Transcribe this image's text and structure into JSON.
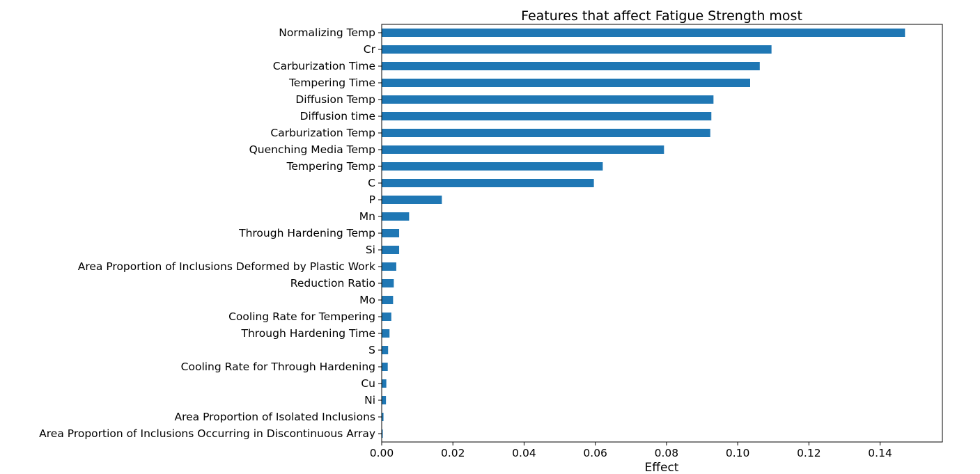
{
  "chart_data": {
    "type": "bar",
    "orientation": "horizontal",
    "title": "Features that affect Fatigue Strength most",
    "xlabel": "Effect",
    "ylabel": "",
    "xlim": [
      0,
      0.1575
    ],
    "xticks": [
      "0.00",
      "0.02",
      "0.04",
      "0.06",
      "0.08",
      "0.10",
      "0.12",
      "0.14"
    ],
    "grid": false,
    "legend": false,
    "bar_color": "#1f77b4",
    "categories": [
      "Normalizing Temp",
      "Cr",
      "Carburization Time",
      "Tempering Time",
      "Diffusion Temp",
      "Diffusion time",
      "Carburization Temp",
      "Quenching Media Temp",
      "Tempering Temp",
      "C",
      "P",
      "Mn",
      "Through Hardening Temp",
      "Si",
      "Area Proportion of Inclusions Deformed by Plastic Work",
      "Reduction Ratio",
      "Mo",
      "Cooling Rate for Tempering",
      "Through Hardening Time",
      "S",
      "Cooling Rate for Through Hardening",
      "Cu",
      "Ni",
      "Area Proportion of Isolated Inclusions",
      "Area Proportion of Inclusions Occurring in Discontinuous Array"
    ],
    "values": [
      0.147,
      0.1095,
      0.1062,
      0.1035,
      0.0932,
      0.0926,
      0.0923,
      0.0793,
      0.0621,
      0.0596,
      0.0169,
      0.0077,
      0.0049,
      0.0049,
      0.0041,
      0.0034,
      0.0032,
      0.0027,
      0.0022,
      0.0018,
      0.0017,
      0.0013,
      0.0012,
      0.0005,
      0.0003
    ]
  }
}
